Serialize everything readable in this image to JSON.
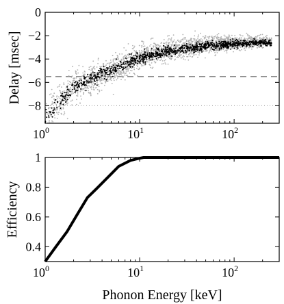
{
  "chart_data": [
    {
      "type": "scatter",
      "title": "",
      "xlabel": "",
      "ylabel": "Delay [msec]",
      "xscale": "log",
      "xlim": [
        1,
        300
      ],
      "ylim": [
        -9.5,
        0
      ],
      "x_tick_labels": [
        {
          "base": "10",
          "exp": "0",
          "value": 1
        },
        {
          "base": "10",
          "exp": "1",
          "value": 10
        },
        {
          "base": "10",
          "exp": "2",
          "value": 100
        }
      ],
      "y_tick_labels": [
        "0",
        "−2",
        "−4",
        "−6",
        "−8"
      ],
      "y_tick_values": [
        0,
        -2,
        -4,
        -6,
        -8
      ],
      "reference_lines": [
        {
          "style": "dashed",
          "y": -5.5,
          "color": "#777777"
        },
        {
          "style": "dotted",
          "y": -8.0,
          "color": "#999999"
        }
      ],
      "series": [
        {
          "style": "gray-dots",
          "color": "#b0b0b0",
          "trend": [
            [
              1,
              -9.0
            ],
            [
              2,
              -6.5
            ],
            [
              5,
              -5.0
            ],
            [
              10,
              -3.8
            ],
            [
              20,
              -3.2
            ],
            [
              50,
              -2.8
            ],
            [
              100,
              -2.6
            ],
            [
              200,
              -2.5
            ]
          ]
        },
        {
          "style": "black-dots",
          "color": "#000000",
          "trend": [
            [
              1,
              -9.1
            ],
            [
              2,
              -6.4
            ],
            [
              4,
              -5.3
            ],
            [
              10,
              -3.9
            ],
            [
              20,
              -3.3
            ],
            [
              50,
              -2.9
            ],
            [
              100,
              -2.7
            ],
            [
              200,
              -2.6
            ]
          ]
        }
      ]
    },
    {
      "type": "line",
      "title": "",
      "xlabel": "Phonon Energy [keV]",
      "ylabel": "Efficiency",
      "xscale": "log",
      "xlim": [
        1,
        300
      ],
      "ylim": [
        0.3,
        1.0
      ],
      "x_tick_labels": [
        {
          "base": "10",
          "exp": "0",
          "value": 1
        },
        {
          "base": "10",
          "exp": "1",
          "value": 10
        },
        {
          "base": "10",
          "exp": "2",
          "value": 100
        }
      ],
      "y_tick_labels": [
        "0.4",
        "0.6",
        "0.8",
        "1"
      ],
      "y_tick_values": [
        0.4,
        0.6,
        0.8,
        1.0
      ],
      "series": [
        {
          "color": "#000000",
          "x": [
            1.0,
            1.3,
            1.7,
            2.2,
            2.8,
            3.5,
            4.5,
            6.0,
            8.0,
            10.0,
            11.0,
            20.0,
            50.0,
            100.0,
            300.0
          ],
          "y": [
            0.3,
            0.4,
            0.5,
            0.62,
            0.73,
            0.79,
            0.86,
            0.94,
            0.98,
            0.995,
            1.0,
            1.0,
            1.0,
            1.0,
            1.0
          ]
        }
      ]
    }
  ]
}
